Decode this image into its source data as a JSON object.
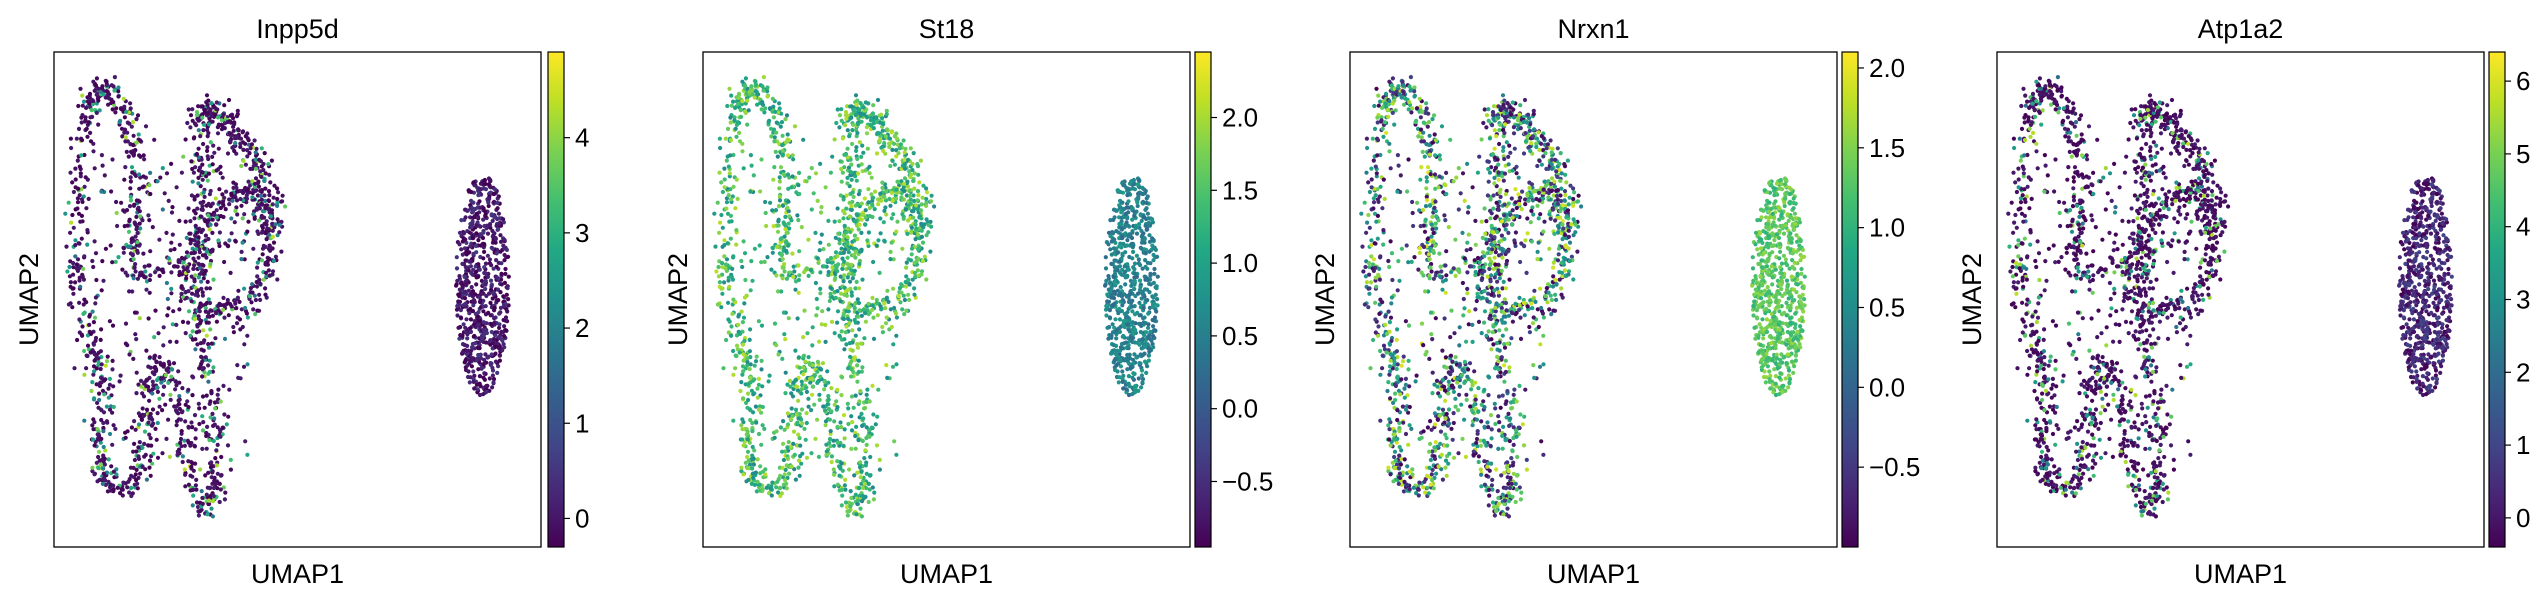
{
  "chart_data": [
    {
      "type": "scatter",
      "title": "Inpp5d",
      "xlabel": "UMAP1",
      "ylabel": "UMAP2",
      "colormap": "viridis",
      "colorbar": {
        "min": -0.3,
        "max": 4.9,
        "ticks": [
          0,
          1,
          2,
          3,
          4
        ]
      },
      "pattern": "sparse-high",
      "right_cluster_level": 0.0
    },
    {
      "type": "scatter",
      "title": "St18",
      "xlabel": "UMAP1",
      "ylabel": "UMAP2",
      "colormap": "viridis",
      "colorbar": {
        "min": -0.95,
        "max": 2.45,
        "ticks": [
          -0.5,
          0.0,
          0.5,
          1.0,
          1.5,
          2.0
        ]
      },
      "pattern": "high-left",
      "right_cluster_level": 0.55
    },
    {
      "type": "scatter",
      "title": "Nrxn1",
      "xlabel": "UMAP1",
      "ylabel": "UMAP2",
      "colormap": "viridis",
      "colorbar": {
        "min": -1.0,
        "max": 2.1,
        "ticks": [
          -0.5,
          0.0,
          0.5,
          1.0,
          1.5,
          2.0
        ]
      },
      "pattern": "mixed-left",
      "right_cluster_level": 1.3
    },
    {
      "type": "scatter",
      "title": "Atp1a2",
      "xlabel": "UMAP1",
      "ylabel": "UMAP2",
      "colormap": "viridis",
      "colorbar": {
        "min": -0.4,
        "max": 6.4,
        "ticks": [
          0,
          1,
          2,
          3,
          4,
          5,
          6
        ]
      },
      "pattern": "sparse-high",
      "right_cluster_level": 0.3
    }
  ]
}
